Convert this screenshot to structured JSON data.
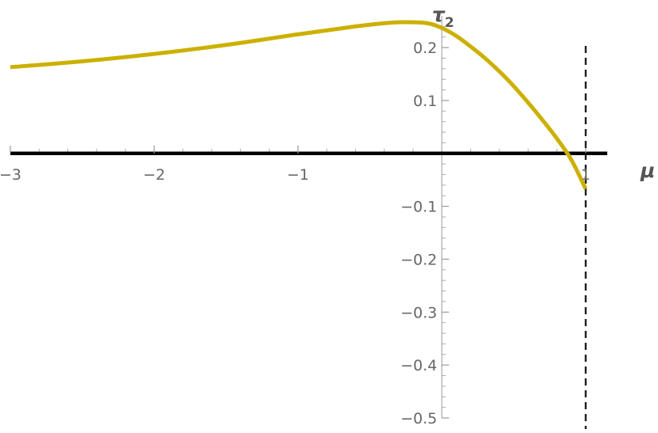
{
  "chart_data": {
    "type": "line",
    "xlabel": "μ",
    "ylabel_base": "τ",
    "ylabel_sub": "2",
    "xlim": [
      -3,
      1.15
    ],
    "ylim": [
      -0.5,
      0.26
    ],
    "x_ticks": [
      {
        "value": -3,
        "label": "−3"
      },
      {
        "value": -2,
        "label": "−2"
      },
      {
        "value": -1,
        "label": "−1"
      },
      {
        "value": 1,
        "label": "1"
      }
    ],
    "y_ticks": [
      {
        "value": 0.2,
        "label": "0.2"
      },
      {
        "value": 0.1,
        "label": "0.1"
      },
      {
        "value": -0.1,
        "label": "−0.1"
      },
      {
        "value": -0.2,
        "label": "−0.2"
      },
      {
        "value": -0.3,
        "label": "−0.3"
      },
      {
        "value": -0.4,
        "label": "−0.4"
      },
      {
        "value": -0.5,
        "label": "−0.5"
      }
    ],
    "asymptote_x": 1,
    "grid": false,
    "series": [
      {
        "color": "#ccb000",
        "x": [
          -3.0,
          -2.5,
          -2.0,
          -1.5,
          -1.0,
          -0.6,
          -0.4,
          -0.25,
          -0.1,
          0.0,
          0.1,
          0.2,
          0.3,
          0.4,
          0.5,
          0.6,
          0.7,
          0.8,
          0.9,
          1.0
        ],
        "y": [
          0.163,
          0.174,
          0.188,
          0.205,
          0.225,
          0.24,
          0.246,
          0.248,
          0.246,
          0.237,
          0.222,
          0.202,
          0.18,
          0.155,
          0.127,
          0.096,
          0.063,
          0.028,
          -0.012,
          -0.067
        ]
      }
    ]
  }
}
